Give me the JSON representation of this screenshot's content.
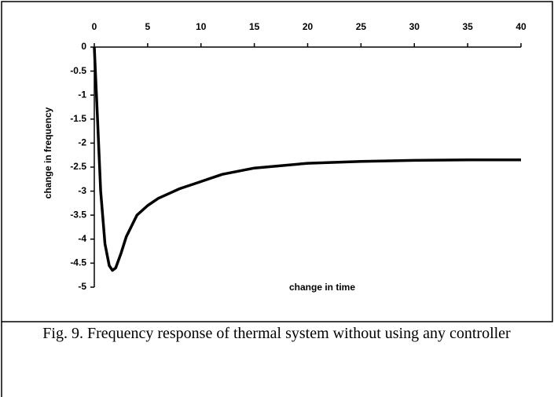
{
  "chart_data": {
    "type": "line",
    "caption": "Fig. 9. Frequency response of thermal system without using any controller",
    "xlabel": "change in time",
    "ylabel": "change in frequency",
    "x": [
      0,
      0.3,
      0.6,
      1.0,
      1.4,
      1.7,
      2.0,
      2.5,
      3,
      4,
      5,
      6,
      7,
      8,
      10,
      12,
      15,
      20,
      25,
      30,
      35,
      40
    ],
    "values": [
      0,
      -1.5,
      -3,
      -4.1,
      -4.55,
      -4.65,
      -4.6,
      -4.3,
      -3.95,
      -3.5,
      -3.3,
      -3.15,
      -3.05,
      -2.95,
      -2.8,
      -2.65,
      -2.52,
      -2.42,
      -2.38,
      -2.36,
      -2.35,
      -2.35
    ],
    "color": "#000000",
    "xlim": [
      0,
      40
    ],
    "xticks": [
      0,
      5,
      10,
      15,
      20,
      25,
      30,
      35,
      40
    ],
    "ylim": [
      -5,
      0
    ],
    "yticks": [
      0,
      -0.5,
      -1,
      -1.5,
      -2,
      -2.5,
      -3,
      -3.5,
      -4,
      -4.5,
      -5
    ]
  }
}
